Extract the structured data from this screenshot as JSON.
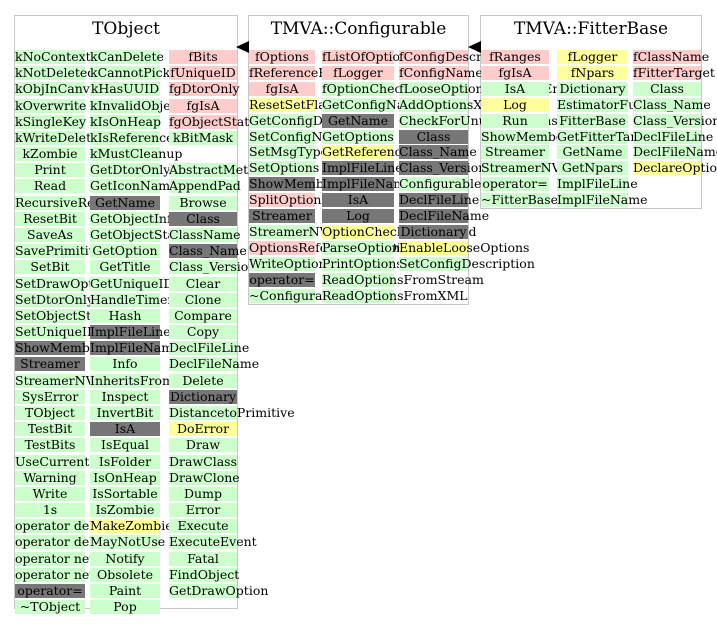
{
  "colors": {
    "green": "#ccffcc",
    "pink": "#ffcccc",
    "yellow": "#ffff99",
    "gray": "#777777",
    "border": "#c8c8c8"
  },
  "classes": [
    {
      "id": "tobject",
      "title": "TObject",
      "columns": [
        [
          [
            "kNoContextMenu",
            "g"
          ],
          [
            "kNotDeleted",
            "g"
          ],
          [
            "kObjInCanvas",
            "g"
          ],
          [
            "kOverwrite",
            "g"
          ],
          [
            "kSingleKey",
            "g"
          ],
          [
            "kWriteDelete",
            "g"
          ],
          [
            "kZombie",
            "g"
          ],
          [
            "Print",
            "g"
          ],
          [
            "Read",
            "g"
          ],
          [
            "RecursiveRemove",
            "g"
          ],
          [
            "ResetBit",
            "g"
          ],
          [
            "SaveAs",
            "g"
          ],
          [
            "SavePrimitive",
            "g"
          ],
          [
            "SetBit",
            "g"
          ],
          [
            "SetDrawOption",
            "g"
          ],
          [
            "SetDtorOnly",
            "g"
          ],
          [
            "SetObjectStat",
            "g"
          ],
          [
            "SetUniqueID",
            "g"
          ],
          [
            "ShowMembers",
            "d"
          ],
          [
            "Streamer",
            "d"
          ],
          [
            "StreamerNVirtual",
            "g"
          ],
          [
            "SysError",
            "g"
          ],
          [
            "TObject",
            "g"
          ],
          [
            "TestBit",
            "g"
          ],
          [
            "TestBits",
            "g"
          ],
          [
            "UseCurrentStyle",
            "g"
          ],
          [
            "Warning",
            "g"
          ],
          [
            "Write",
            "g"
          ],
          [
            "1s",
            "g"
          ],
          [
            "operator delete",
            "g"
          ],
          [
            "operator delete[]",
            "g"
          ],
          [
            "operator new",
            "g"
          ],
          [
            "operator new[]",
            "g"
          ],
          [
            "operator=",
            "d"
          ],
          [
            "~TObject",
            "g"
          ]
        ],
        [
          [
            "kCanDelete",
            "g"
          ],
          [
            "kCannotPick",
            "g"
          ],
          [
            "kHasUUID",
            "g"
          ],
          [
            "kInvalidObject",
            "g"
          ],
          [
            "kIsOnHeap",
            "g"
          ],
          [
            "kIsReferenced",
            "g"
          ],
          [
            "kMustCleanup",
            "g"
          ],
          [
            "GetDtorOnly",
            "g"
          ],
          [
            "GetIconName",
            "g"
          ],
          [
            "GetName",
            "d"
          ],
          [
            "GetObjectInfo",
            "g"
          ],
          [
            "GetObjectStat",
            "g"
          ],
          [
            "GetOption",
            "g"
          ],
          [
            "GetTitle",
            "g"
          ],
          [
            "GetUniqueID",
            "g"
          ],
          [
            "HandleTimer",
            "g"
          ],
          [
            "Hash",
            "g"
          ],
          [
            "ImplFileLine",
            "d"
          ],
          [
            "ImplFileName",
            "d"
          ],
          [
            "Info",
            "g"
          ],
          [
            "InheritsFrom",
            "g"
          ],
          [
            "Inspect",
            "g"
          ],
          [
            "InvertBit",
            "g"
          ],
          [
            "IsA",
            "d"
          ],
          [
            "IsEqual",
            "g"
          ],
          [
            "IsFolder",
            "g"
          ],
          [
            "IsOnHeap",
            "g"
          ],
          [
            "IsSortable",
            "g"
          ],
          [
            "IsZombie",
            "g"
          ],
          [
            "MakeZombie",
            "y"
          ],
          [
            "MayNotUse",
            "g"
          ],
          [
            "Notify",
            "g"
          ],
          [
            "Obsolete",
            "g"
          ],
          [
            "Paint",
            "g"
          ],
          [
            "Pop",
            "g"
          ]
        ],
        [
          [
            "fBits",
            "p"
          ],
          [
            "fUniqueID",
            "p"
          ],
          [
            "fgDtorOnly",
            "p"
          ],
          [
            "fgIsA",
            "p"
          ],
          [
            "fgObjectStat",
            "p"
          ],
          [
            "kBitMask",
            "g"
          ],
          [
            "",
            ""
          ],
          [
            "AbstractMethod",
            "g"
          ],
          [
            "AppendPad",
            "g"
          ],
          [
            "Browse",
            "g"
          ],
          [
            "Class",
            "d"
          ],
          [
            "ClassName",
            "g"
          ],
          [
            "Class_Name",
            "d"
          ],
          [
            "Class_Version",
            "g"
          ],
          [
            "Clear",
            "g"
          ],
          [
            "Clone",
            "g"
          ],
          [
            "Compare",
            "g"
          ],
          [
            "Copy",
            "g"
          ],
          [
            "DeclFileLine",
            "g"
          ],
          [
            "DeclFileName",
            "g"
          ],
          [
            "Delete",
            "g"
          ],
          [
            "Dictionary",
            "d"
          ],
          [
            "DistancetoPrimitive",
            "g"
          ],
          [
            "DoError",
            "y"
          ],
          [
            "Draw",
            "g"
          ],
          [
            "DrawClass",
            "g"
          ],
          [
            "DrawClone",
            "g"
          ],
          [
            "Dump",
            "g"
          ],
          [
            "Error",
            "g"
          ],
          [
            "Execute",
            "g"
          ],
          [
            "ExecuteEvent",
            "g"
          ],
          [
            "Fatal",
            "g"
          ],
          [
            "FindObject",
            "g"
          ],
          [
            "GetDrawOption",
            "g"
          ]
        ]
      ]
    },
    {
      "id": "configurable",
      "title": "TMVA::Configurable",
      "columns": [
        [
          [
            "fOptions",
            "p"
          ],
          [
            "fReferenceFile",
            "p"
          ],
          [
            "fgIsA",
            "p"
          ],
          [
            "ResetSetFlag",
            "y"
          ],
          [
            "GetConfigDescription",
            "g"
          ],
          [
            "SetConfigName",
            "g"
          ],
          [
            "SetMsgType",
            "g"
          ],
          [
            "SetOptions",
            "g"
          ],
          [
            "ShowMembers",
            "d"
          ],
          [
            "SplitOptions",
            "p"
          ],
          [
            "Streamer",
            "d"
          ],
          [
            "StreamerNVirtual",
            "g"
          ],
          [
            "OptionsReferenceFileDir",
            "p"
          ],
          [
            "WriteOptionsToStream",
            "g"
          ],
          [
            "operator=",
            "d"
          ],
          [
            "~Configurable",
            "g"
          ]
        ],
        [
          [
            "fListOfOptions",
            "p"
          ],
          [
            "fLogger",
            "p"
          ],
          [
            "fOptionChecking",
            "g"
          ],
          [
            "GetConfigName",
            "g"
          ],
          [
            "GetName",
            "d"
          ],
          [
            "GetOptions",
            "g"
          ],
          [
            "GetReferenceFile",
            "y"
          ],
          [
            "ImplFileLine",
            "d"
          ],
          [
            "ImplFileName",
            "d"
          ],
          [
            "IsA",
            "d"
          ],
          [
            "Log",
            "d"
          ],
          [
            "OptionCheckingEnabled",
            "y"
          ],
          [
            "ParseOptions",
            "g"
          ],
          [
            "PrintOptions",
            "g"
          ],
          [
            "ReadOptionsFromStream",
            "g"
          ],
          [
            "ReadOptionsFromXML",
            "g"
          ]
        ],
        [
          [
            "fConfigDescription",
            "p"
          ],
          [
            "fConfigName",
            "p"
          ],
          [
            "fLooseOptionCheckingEnabled",
            "g"
          ],
          [
            "AddOptionsXMLTo",
            "g"
          ],
          [
            "CheckForUnusedOptions",
            "g"
          ],
          [
            "Class",
            "d"
          ],
          [
            "Class_Name",
            "d"
          ],
          [
            "Class_Version",
            "d"
          ],
          [
            "Configurable",
            "g"
          ],
          [
            "DeclFileLine",
            "d"
          ],
          [
            "DeclFileName",
            "d"
          ],
          [
            "Dictionary",
            "d"
          ],
          [
            "EnableLooseOptions",
            "y"
          ],
          [
            "SetConfigDescription",
            "g"
          ]
        ]
      ]
    },
    {
      "id": "fitterbase",
      "title": "TMVA::FitterBase",
      "columns": [
        [
          [
            "fRanges",
            "p"
          ],
          [
            "fgIsA",
            "p"
          ],
          [
            "IsA",
            "g"
          ],
          [
            "Log",
            "y"
          ],
          [
            "Run",
            "g"
          ],
          [
            "ShowMembers",
            "g"
          ],
          [
            "Streamer",
            "g"
          ],
          [
            "StreamerNVirtual",
            "g"
          ],
          [
            "operator=",
            "g"
          ],
          [
            "~FitterBase",
            "g"
          ]
        ],
        [
          [
            "fLogger",
            "y"
          ],
          [
            "fNpars",
            "y"
          ],
          [
            "Dictionary",
            "g"
          ],
          [
            "EstimatorFunction",
            "g"
          ],
          [
            "FitterBase",
            "g"
          ],
          [
            "GetFitterTarget",
            "g"
          ],
          [
            "GetName",
            "g"
          ],
          [
            "GetNpars",
            "g"
          ],
          [
            "ImplFileLine",
            "g"
          ],
          [
            "ImplFileName",
            "g"
          ]
        ],
        [
          [
            "fClassName",
            "p"
          ],
          [
            "fFitterTarget",
            "p"
          ],
          [
            "Class",
            "g"
          ],
          [
            "Class_Name",
            "g"
          ],
          [
            "Class_Version",
            "g"
          ],
          [
            "DeclFileLine",
            "g"
          ],
          [
            "DeclFileName",
            "g"
          ],
          [
            "DeclareOptions",
            "y"
          ]
        ]
      ]
    }
  ]
}
